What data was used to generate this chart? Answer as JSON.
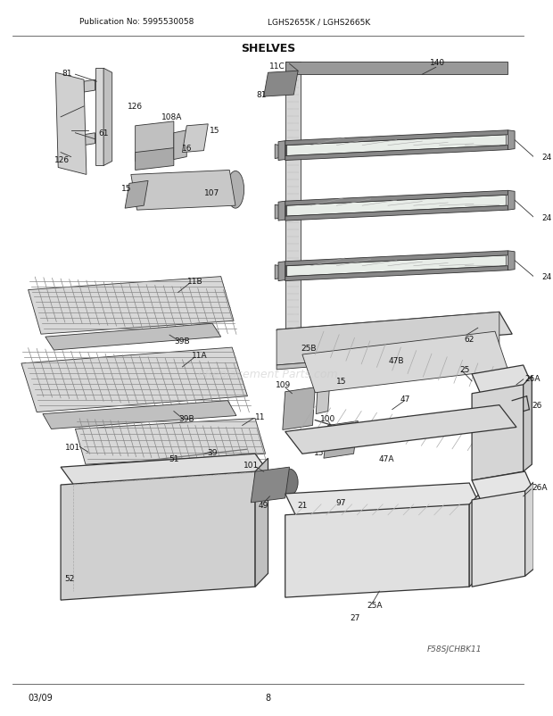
{
  "title": "SHELVES",
  "pub_no": "Publication No: 5995530058",
  "model": "LGHS2655K / LGHS2665K",
  "page": "8",
  "date": "03/09",
  "fig_id": "F58SJCHBK11",
  "bg_color": "#ffffff",
  "fig_width": 6.2,
  "fig_height": 8.03,
  "dpi": 100,
  "lc": "#333333",
  "lw": 0.8
}
